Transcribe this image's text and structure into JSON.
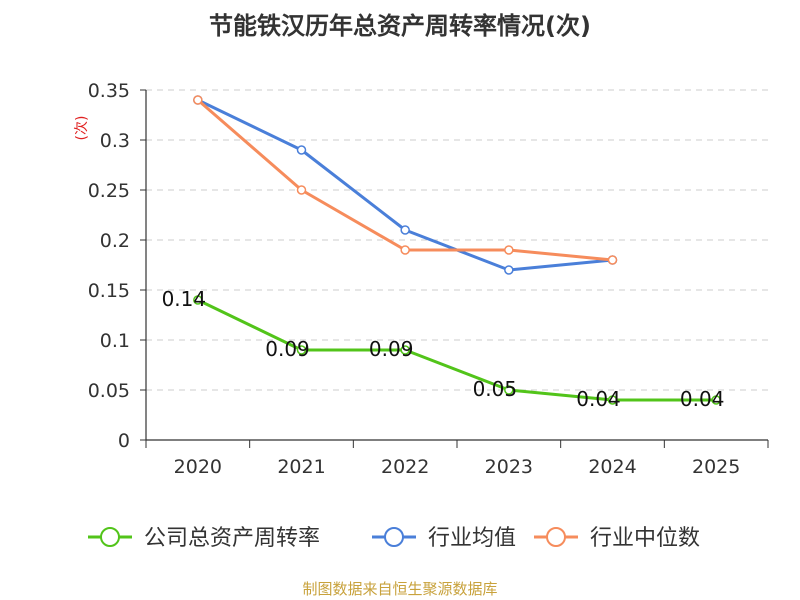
{
  "chart_data": {
    "type": "line",
    "title": "节能铁汉历年总资产周转率情况(次)",
    "ylabel": "(次)",
    "xlabel": "",
    "categories": [
      "2020",
      "2021",
      "2022",
      "2023",
      "2024",
      "2025"
    ],
    "yticks": [
      "0",
      "0.05",
      "0.1",
      "0.15",
      "0.2",
      "0.25",
      "0.3",
      "0.35"
    ],
    "ylim": [
      0,
      0.35
    ],
    "grid": true,
    "legend_position": "bottom",
    "series": [
      {
        "name": "公司总资产周转率",
        "color": "#52c41a",
        "values": [
          0.14,
          0.09,
          0.09,
          0.05,
          0.04,
          0.04
        ],
        "labels": [
          "0.14",
          "0.09",
          "0.09",
          "0.05",
          "0.04",
          "0.04"
        ]
      },
      {
        "name": "行业均值",
        "color": "#4a7fd9",
        "values": [
          0.34,
          0.29,
          0.21,
          0.17,
          0.18,
          null
        ]
      },
      {
        "name": "行业中位数",
        "color": "#f68c5c",
        "values": [
          0.34,
          0.25,
          0.19,
          0.19,
          0.18,
          null
        ]
      }
    ]
  },
  "source_note": "制图数据来自恒生聚源数据库"
}
